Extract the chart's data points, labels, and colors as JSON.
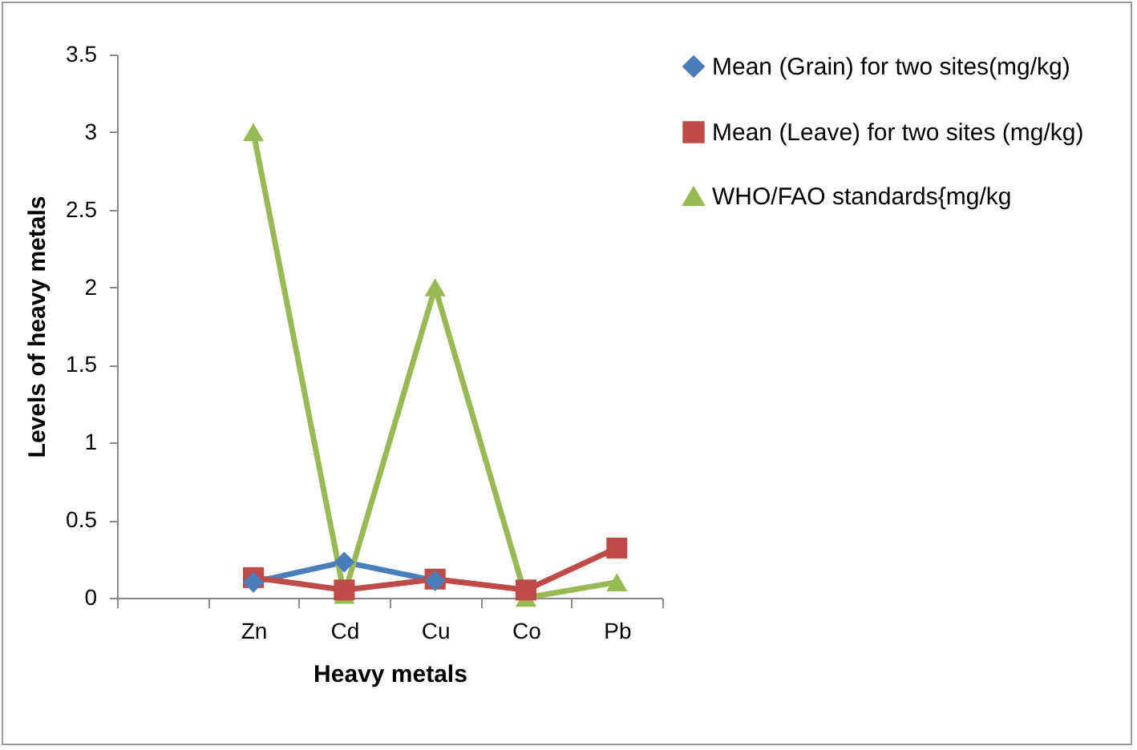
{
  "chart_data": {
    "type": "line",
    "xlabel": "Heavy metals",
    "ylabel": "Levels of heavy metals",
    "categories": [
      null,
      "Zn",
      "Cd",
      "Cu",
      "Co",
      "Pb"
    ],
    "series": [
      {
        "name": "Mean (Grain) for two sites(mg/kg)",
        "color": "#4a7ebb",
        "marker": "diamond",
        "values": [
          null,
          0.1,
          0.23,
          0.11,
          null,
          null
        ]
      },
      {
        "name": "Mean (Leave)  for two sites (mg/kg)",
        "color": "#be4b48",
        "marker": "square",
        "values": [
          null,
          0.13,
          0.05,
          0.12,
          0.05,
          0.32
        ]
      },
      {
        "name": "WHO/FAO standards{mg/kg",
        "color": "#98b954",
        "marker": "triangle",
        "values": [
          null,
          3,
          0.02,
          2,
          0,
          0.1
        ]
      }
    ],
    "ylim": [
      0,
      3.5
    ],
    "yticks": [
      0,
      0.5,
      1,
      1.5,
      2,
      2.5,
      3,
      3.5
    ],
    "grid": false,
    "legend": "right"
  }
}
